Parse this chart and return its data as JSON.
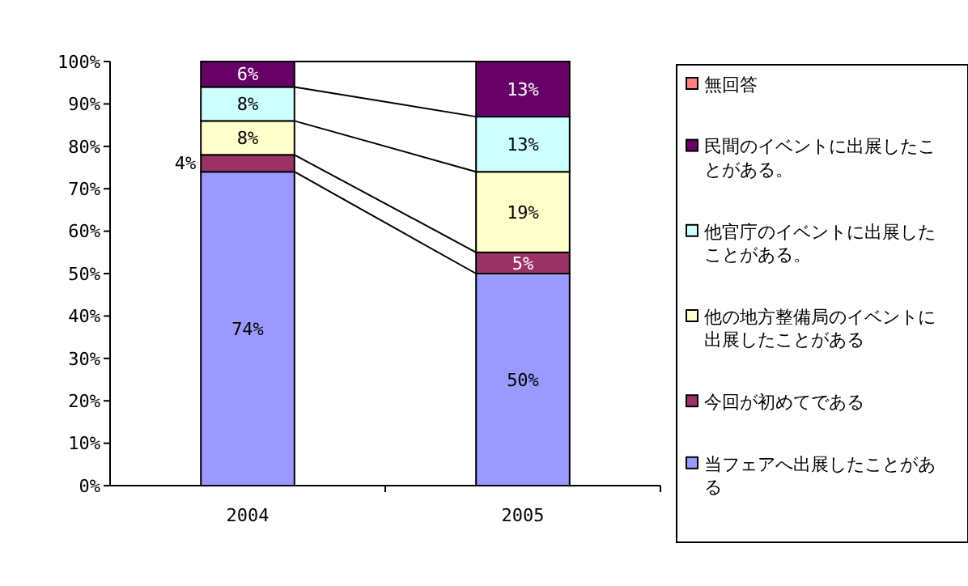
{
  "chart_data": {
    "type": "bar",
    "stacked": true,
    "categories": [
      "2004",
      "2005"
    ],
    "series": [
      {
        "name": "当フェアへ出展したことがある",
        "color": "#9999ff",
        "values": [
          74,
          50
        ],
        "value_labels": [
          "74%",
          "50%"
        ]
      },
      {
        "name": "今回が初めてである",
        "color": "#993366",
        "values": [
          4,
          5
        ],
        "value_labels": [
          "4%",
          "5%"
        ]
      },
      {
        "name": "他の地方整備局のイベントに出展したことがある",
        "color": "#ffffcc",
        "values": [
          8,
          19
        ],
        "value_labels": [
          "8%",
          "19%"
        ]
      },
      {
        "name": "他官庁のイベントに出展したことがある。",
        "color": "#ccffff",
        "values": [
          8,
          13
        ],
        "value_labels": [
          "8%",
          "13%"
        ]
      },
      {
        "name": "民間のイベントに出展したことがある。",
        "color": "#660066",
        "values": [
          6,
          13
        ],
        "value_labels": [
          "6%",
          "13%"
        ]
      },
      {
        "name": "無回答",
        "color": "#ff8080",
        "values": [
          0,
          0
        ],
        "value_labels": [
          null,
          null
        ]
      }
    ],
    "ylim": [
      0,
      100
    ],
    "yticks": [
      {
        "value": 0,
        "label": "0%"
      },
      {
        "value": 10,
        "label": "10%"
      },
      {
        "value": 20,
        "label": "20%"
      },
      {
        "value": 30,
        "label": "30%"
      },
      {
        "value": 40,
        "label": "40%"
      },
      {
        "value": 50,
        "label": "50%"
      },
      {
        "value": 60,
        "label": "60%"
      },
      {
        "value": 70,
        "label": "70%"
      },
      {
        "value": 80,
        "label": "80%"
      },
      {
        "value": 90,
        "label": "90%"
      },
      {
        "value": 100,
        "label": "100%"
      }
    ],
    "legend": "right"
  }
}
